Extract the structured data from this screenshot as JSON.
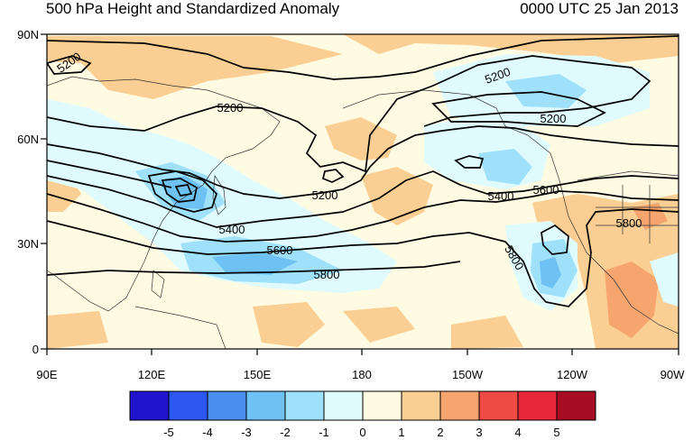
{
  "header": {
    "title": "500 hPa Height and Standardized Anomaly",
    "valid_time": "0000 UTC 25 Jan 2013"
  },
  "map": {
    "lat_labels": [
      "90N",
      "60N",
      "30N",
      "0"
    ],
    "lon_labels": [
      "90E",
      "120E",
      "150E",
      "180",
      "150W",
      "120W",
      "90W"
    ],
    "contour_labels": [
      "5200",
      "5200",
      "5200",
      "5200",
      "5200",
      "5400",
      "5400",
      "5600",
      "5600",
      "5800",
      "5800",
      "5800"
    ]
  },
  "legend": {
    "tick_labels": [
      "-5",
      "-4",
      "-3",
      "-2",
      "-1",
      "0",
      "1",
      "2",
      "3",
      "4",
      "5"
    ],
    "colors": [
      "#2213cc",
      "#2c57f0",
      "#4a8ef0",
      "#6dc1f3",
      "#9fe1fb",
      "#dffbfd",
      "#fffbe2",
      "#fbcf93",
      "#f7a56f",
      "#f04a44",
      "#e8263a",
      "#a80c25"
    ]
  }
}
